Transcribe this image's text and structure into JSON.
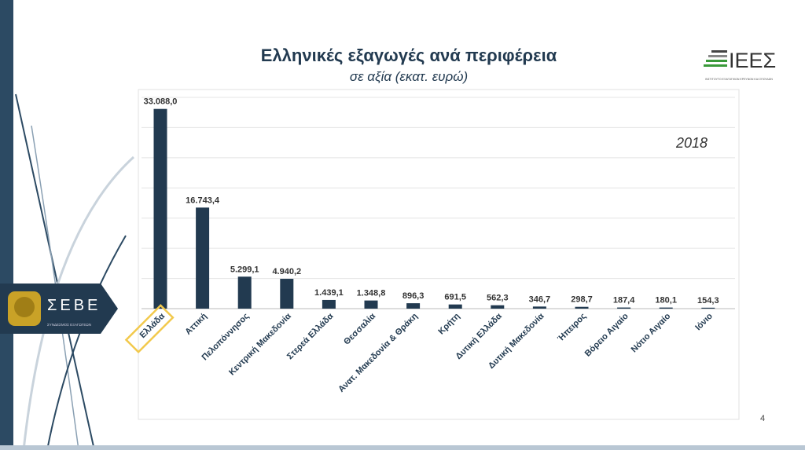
{
  "slide": {
    "title": "Ελληνικές εξαγωγές ανά περιφέρεια",
    "subtitle": "σε αξία (εκατ. ευρώ)",
    "page_number": "4",
    "logo_left": {
      "name": "ΣΕΒΕ",
      "tagline": "ΣΥΝΔΕΣΜΟΣ ΕΞΑΓΩΓΕΩΝ"
    },
    "logo_right": {
      "name": "ΙΕΕΣ",
      "tagline": "ΙΝΣΤΙΤΟΥΤΟ ΕΞΑΓΩΓΙΚΩΝ ΕΡΕΥΝΩΝ ΚΑΙ ΣΠΟΥΔΩΝ"
    }
  },
  "chart_data": {
    "type": "bar",
    "title": "Ελληνικές εξαγωγές ανά περιφέρεια",
    "subtitle": "σε αξία (εκατ. ευρώ)",
    "annotation": "2018",
    "xlabel": "",
    "ylabel": "",
    "ylim": [
      0,
      35000
    ],
    "grid": true,
    "highlight": "Ελλάδα",
    "bar_color": "#223a50",
    "highlight_color": "#f2c94c",
    "categories": [
      "Ελλάδα",
      "Αττική",
      "Πελοπόννησος",
      "Κεντρική Μακεδονία",
      "Στερεά Ελλάδα",
      "Θεσσαλία",
      "Ανατ. Μακεδονία & Θράκη",
      "Κρήτη",
      "Δυτική Ελλάδα",
      "Δυτική Μακεδονία",
      "Ήπειρος",
      "Βόρειο Αιγαίο",
      "Νότιο Αιγαίο",
      "Ιόνιο"
    ],
    "values": [
      33088.0,
      16743.4,
      5299.1,
      4940.2,
      1439.1,
      1348.8,
      896.3,
      691.5,
      562.3,
      346.7,
      298.7,
      187.4,
      180.1,
      154.3
    ],
    "value_labels": [
      "33.088,0",
      "16.743,4",
      "5.299,1",
      "4.940,2",
      "1.439,1",
      "1.348,8",
      "896,3",
      "691,5",
      "562,3",
      "346,7",
      "298,7",
      "187,4",
      "180,1",
      "154,3"
    ]
  }
}
